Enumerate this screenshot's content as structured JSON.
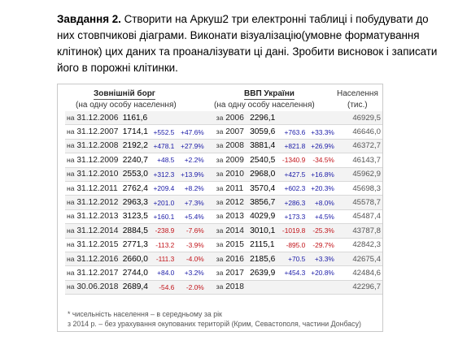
{
  "task": {
    "bold": "Завдання 2.",
    "text": " Створити на Аркуш2 три електронні таблиці і побудувати до них стовпчикові діаграми. Виконати візуалізацію(умовне форматування клітинок)  цих даних  та проаналізувати ці дані. Зробити висновок і записати його в порожні клітинки."
  },
  "headers": {
    "debt_title": "Зовнішній борг",
    "debt_sub": "(на одну особу населення)",
    "gdp_title": "ВВП України",
    "gdp_sub": "(на одну особу населення)",
    "pop_title": "Населення",
    "pop_sub": "(тис.)"
  },
  "rows": [
    {
      "na": "на",
      "d1": "31.12.2006",
      "v1": "1161,6",
      "c1": "",
      "p1": "",
      "za": "за",
      "d2": "2006",
      "v2": "2296,1",
      "c2": "",
      "p2": "",
      "pop": "46929,5"
    },
    {
      "na": "на",
      "d1": "31.12.2007",
      "v1": "1714,1",
      "c1": "+552.5",
      "p1": "+47.6%",
      "za": "за",
      "d2": "2007",
      "v2": "3059,6",
      "c2": "+763.6",
      "p2": "+33.3%",
      "pop": "46646,0"
    },
    {
      "na": "на",
      "d1": "31.12.2008",
      "v1": "2192,2",
      "c1": "+478.1",
      "p1": "+27.9%",
      "za": "за",
      "d2": "2008",
      "v2": "3881,4",
      "c2": "+821.8",
      "p2": "+26.9%",
      "pop": "46372,7"
    },
    {
      "na": "на",
      "d1": "31.12.2009",
      "v1": "2240,7",
      "c1": "+48.5",
      "p1": "+2.2%",
      "za": "за",
      "d2": "2009",
      "v2": "2540,5",
      "c2": "-1340.9",
      "p2": "-34.5%",
      "pop": "46143,7"
    },
    {
      "na": "на",
      "d1": "31.12.2010",
      "v1": "2553,0",
      "c1": "+312.3",
      "p1": "+13.9%",
      "za": "за",
      "d2": "2010",
      "v2": "2968,0",
      "c2": "+427.5",
      "p2": "+16.8%",
      "pop": "45962,9"
    },
    {
      "na": "на",
      "d1": "31.12.2011",
      "v1": "2762,4",
      "c1": "+209.4",
      "p1": "+8.2%",
      "za": "за",
      "d2": "2011",
      "v2": "3570,4",
      "c2": "+602.3",
      "p2": "+20.3%",
      "pop": "45698,3"
    },
    {
      "na": "на",
      "d1": "31.12.2012",
      "v1": "2963,3",
      "c1": "+201.0",
      "p1": "+7.3%",
      "za": "за",
      "d2": "2012",
      "v2": "3856,7",
      "c2": "+286.3",
      "p2": "+8.0%",
      "pop": "45578,7"
    },
    {
      "na": "на",
      "d1": "31.12.2013",
      "v1": "3123,5",
      "c1": "+160.1",
      "p1": "+5.4%",
      "za": "за",
      "d2": "2013",
      "v2": "4029,9",
      "c2": "+173.3",
      "p2": "+4.5%",
      "pop": "45487,4"
    },
    {
      "na": "на",
      "d1": "31.12.2014",
      "v1": "2884,5",
      "c1": "-238.9",
      "p1": "-7.6%",
      "za": "за",
      "d2": "2014",
      "v2": "3010,1",
      "c2": "-1019.8",
      "p2": "-25.3%",
      "pop": "43787,8"
    },
    {
      "na": "на",
      "d1": "31.12.2015",
      "v1": "2771,3",
      "c1": "-113.2",
      "p1": "-3.9%",
      "za": "за",
      "d2": "2015",
      "v2": "2115,1",
      "c2": "-895.0",
      "p2": "-29.7%",
      "pop": "42842,3"
    },
    {
      "na": "на",
      "d1": "31.12.2016",
      "v1": "2660,0",
      "c1": "-111.3",
      "p1": "-4.0%",
      "za": "за",
      "d2": "2016",
      "v2": "2185,6",
      "c2": "+70.5",
      "p2": "+3.3%",
      "pop": "42675,4"
    },
    {
      "na": "на",
      "d1": "31.12.2017",
      "v1": "2744,0",
      "c1": "+84.0",
      "p1": "+3.2%",
      "za": "за",
      "d2": "2017",
      "v2": "2639,9",
      "c2": "+454.3",
      "p2": "+20.8%",
      "pop": "42484,6"
    },
    {
      "na": "на",
      "d1": "30.06.2018",
      "v1": "2689,4",
      "c1": "-54.6",
      "p1": "-2.0%",
      "za": "за",
      "d2": "2018",
      "v2": "",
      "c2": "",
      "p2": "",
      "pop": "42296,7"
    }
  ],
  "footnotes": [
    "* чисельність населення – в середньому за рік",
    "з 2014 р. – без урахування окупованих територій (Крим, Севастополя, частини Донбасу)"
  ],
  "colors": {
    "positive": "#1c1ca8",
    "negative": "#c2151b",
    "row_alt": "#f3f3f3"
  }
}
